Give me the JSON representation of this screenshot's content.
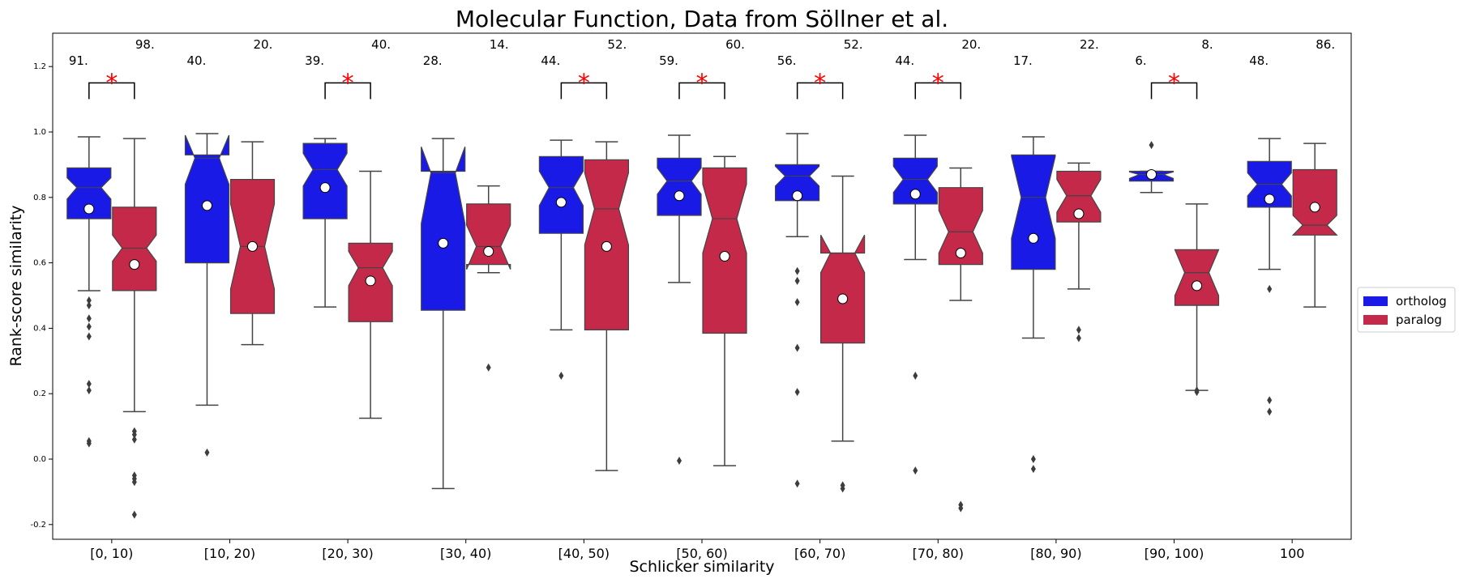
{
  "chart_data": {
    "type": "box",
    "title": "Molecular Function, Data from Söllner et al.",
    "xlabel": "Schlicker similarity",
    "ylabel": "Rank-score similarity",
    "ylim": [
      -0.24,
      1.3
    ],
    "yticks": [
      -0.2,
      0.0,
      0.2,
      0.4,
      0.6,
      0.8,
      1.0,
      1.2
    ],
    "categories": [
      "[0, 10)",
      "[10, 20)",
      "[20, 30)",
      "[30, 40)",
      "[40, 50)",
      "[50, 60)",
      "[60, 70)",
      "[70, 80)",
      "[80, 90)",
      "[90, 100)",
      "100"
    ],
    "legend": {
      "placement": "outside right",
      "entries": [
        {
          "label": "ortholog",
          "color": "#1a1ae6"
        },
        {
          "label": "paralog",
          "color": "#c4294a"
        }
      ]
    },
    "series": [
      {
        "name": "ortholog",
        "color": "#1a1ae6",
        "counts": [
          "91.",
          "40.",
          "39.",
          "28.",
          "44.",
          "59.",
          "56.",
          "44.",
          "17.",
          "6.",
          "48."
        ],
        "boxes": [
          {
            "whislo": 0.515,
            "q1": 0.735,
            "med": 0.83,
            "q3": 0.89,
            "whishi": 0.985,
            "notchlo": 0.795,
            "notchhi": 0.86,
            "mean": 0.765,
            "fliers": [
              0.485,
              0.47,
              0.43,
              0.405,
              0.375,
              0.23,
              0.21,
              0.055,
              0.048
            ]
          },
          {
            "whislo": 0.165,
            "q1": 0.6,
            "med": 0.92,
            "q3": 0.93,
            "whishi": 0.995,
            "notchlo": 0.84,
            "notchhi": 0.99,
            "mean": 0.775,
            "fliers": [
              0.02
            ]
          },
          {
            "whislo": 0.465,
            "q1": 0.735,
            "med": 0.885,
            "q3": 0.965,
            "whishi": 0.98,
            "notchlo": 0.835,
            "notchhi": 0.935,
            "mean": 0.83,
            "fliers": []
          },
          {
            "whislo": -0.09,
            "q1": 0.455,
            "med": 0.875,
            "q3": 0.88,
            "whishi": 0.98,
            "notchlo": 0.72,
            "notchhi": 0.955,
            "mean": 0.66,
            "fliers": []
          },
          {
            "whislo": 0.395,
            "q1": 0.69,
            "med": 0.83,
            "q3": 0.925,
            "whishi": 0.975,
            "notchlo": 0.775,
            "notchhi": 0.88,
            "mean": 0.785,
            "fliers": [
              0.255
            ]
          },
          {
            "whislo": 0.54,
            "q1": 0.745,
            "med": 0.85,
            "q3": 0.92,
            "whishi": 0.99,
            "notchlo": 0.81,
            "notchhi": 0.89,
            "mean": 0.805,
            "fliers": [
              -0.005
            ]
          },
          {
            "whislo": 0.68,
            "q1": 0.79,
            "med": 0.865,
            "q3": 0.9,
            "whishi": 0.995,
            "notchlo": 0.835,
            "notchhi": 0.895,
            "mean": 0.805,
            "fliers": [
              0.575,
              0.545,
              0.48,
              0.34,
              0.205,
              -0.075
            ]
          },
          {
            "whislo": 0.61,
            "q1": 0.78,
            "med": 0.855,
            "q3": 0.92,
            "whishi": 0.99,
            "notchlo": 0.815,
            "notchhi": 0.895,
            "mean": 0.81,
            "fliers": [
              0.255,
              -0.035
            ]
          },
          {
            "whislo": 0.37,
            "q1": 0.58,
            "med": 0.8,
            "q3": 0.93,
            "whishi": 0.985,
            "notchlo": 0.675,
            "notchhi": 0.925,
            "mean": 0.675,
            "fliers": [
              0.0,
              -0.03
            ]
          },
          {
            "whislo": 0.815,
            "q1": 0.85,
            "med": 0.87,
            "q3": 0.88,
            "whishi": 0.88,
            "notchlo": 0.858,
            "notchhi": 0.878,
            "mean": 0.87,
            "fliers": [
              0.96
            ]
          },
          {
            "whislo": 0.58,
            "q1": 0.77,
            "med": 0.84,
            "q3": 0.91,
            "whishi": 0.98,
            "notchlo": 0.805,
            "notchhi": 0.875,
            "mean": 0.795,
            "fliers": [
              0.52,
              0.18,
              0.145
            ]
          }
        ]
      },
      {
        "name": "paralog",
        "color": "#c4294a",
        "counts": [
          "98.",
          "20.",
          "40.",
          "14.",
          "52.",
          "60.",
          "52.",
          "20.",
          "22.",
          "8.",
          "86."
        ],
        "boxes": [
          {
            "whislo": 0.145,
            "q1": 0.515,
            "med": 0.645,
            "q3": 0.77,
            "whishi": 0.98,
            "notchlo": 0.605,
            "notchhi": 0.685,
            "mean": 0.595,
            "fliers": [
              0.085,
              0.075,
              0.06,
              -0.05,
              -0.06,
              -0.07,
              -0.17
            ]
          },
          {
            "whislo": 0.35,
            "q1": 0.445,
            "med": 0.65,
            "q3": 0.855,
            "whishi": 0.97,
            "notchlo": 0.52,
            "notchhi": 0.78,
            "mean": 0.65,
            "fliers": []
          },
          {
            "whislo": 0.125,
            "q1": 0.42,
            "med": 0.585,
            "q3": 0.66,
            "whishi": 0.88,
            "notchlo": 0.53,
            "notchhi": 0.635,
            "mean": 0.545,
            "fliers": []
          },
          {
            "whislo": 0.57,
            "q1": 0.595,
            "med": 0.65,
            "q3": 0.78,
            "whishi": 0.835,
            "notchlo": 0.58,
            "notchhi": 0.715,
            "mean": 0.635,
            "fliers": [
              0.28
            ]
          },
          {
            "whislo": -0.035,
            "q1": 0.395,
            "med": 0.765,
            "q3": 0.915,
            "whishi": 0.97,
            "notchlo": 0.655,
            "notchhi": 0.875,
            "mean": 0.65,
            "fliers": []
          },
          {
            "whislo": -0.02,
            "q1": 0.385,
            "med": 0.735,
            "q3": 0.89,
            "whishi": 0.925,
            "notchlo": 0.63,
            "notchhi": 0.84,
            "mean": 0.62,
            "fliers": []
          },
          {
            "whislo": 0.055,
            "q1": 0.355,
            "med": 0.63,
            "q3": 0.63,
            "whishi": 0.865,
            "notchlo": 0.57,
            "notchhi": 0.685,
            "mean": 0.49,
            "fliers": [
              -0.08,
              -0.09
            ]
          },
          {
            "whislo": 0.485,
            "q1": 0.595,
            "med": 0.695,
            "q3": 0.83,
            "whishi": 0.89,
            "notchlo": 0.63,
            "notchhi": 0.76,
            "mean": 0.63,
            "fliers": [
              -0.14,
              -0.15
            ]
          },
          {
            "whislo": 0.52,
            "q1": 0.725,
            "med": 0.805,
            "q3": 0.88,
            "whishi": 0.905,
            "notchlo": 0.755,
            "notchhi": 0.855,
            "mean": 0.75,
            "fliers": [
              0.395,
              0.37
            ]
          },
          {
            "whislo": 0.21,
            "q1": 0.47,
            "med": 0.57,
            "q3": 0.64,
            "whishi": 0.78,
            "notchlo": 0.5,
            "notchhi": 0.64,
            "mean": 0.53,
            "fliers": [
              0.205,
              0.21
            ]
          },
          {
            "whislo": 0.465,
            "q1": 0.685,
            "med": 0.715,
            "q3": 0.885,
            "whishi": 0.965,
            "notchlo": 0.685,
            "notchhi": 0.745,
            "mean": 0.77,
            "fliers": []
          }
        ]
      }
    ],
    "significance": {
      "marker": "*",
      "color": "#ff0000",
      "y": 1.15,
      "groups": [
        "[0, 10)",
        "[20, 30)",
        "[40, 50)",
        "[50, 60)",
        "[60, 70)",
        "[70, 80)",
        "[90, 100)"
      ]
    },
    "grid": false
  }
}
